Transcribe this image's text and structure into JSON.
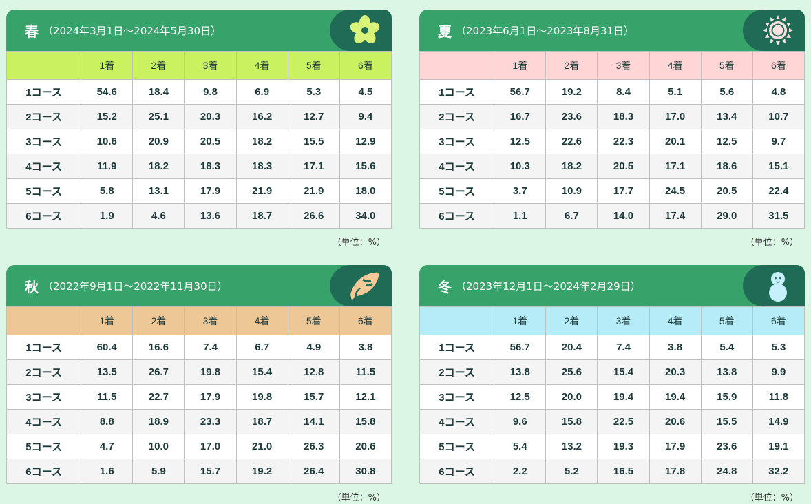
{
  "unit_label": "（単位：%）",
  "columns": [
    "1着",
    "2着",
    "3着",
    "4着",
    "5着",
    "6着"
  ],
  "panels": [
    {
      "season": "春",
      "period": "（2024年3月1日～2024年5月30日）",
      "icon": "sakura-icon",
      "header_color": "#c9f160",
      "rows": [
        {
          "label": "1コース",
          "values": [
            "54.6",
            "18.4",
            "9.8",
            "6.9",
            "5.3",
            "4.5"
          ]
        },
        {
          "label": "2コース",
          "values": [
            "15.2",
            "25.1",
            "20.3",
            "16.2",
            "12.7",
            "9.4"
          ]
        },
        {
          "label": "3コース",
          "values": [
            "10.6",
            "20.9",
            "20.5",
            "18.2",
            "15.5",
            "12.9"
          ]
        },
        {
          "label": "4コース",
          "values": [
            "11.9",
            "18.2",
            "18.3",
            "18.3",
            "17.1",
            "15.6"
          ]
        },
        {
          "label": "5コース",
          "values": [
            "5.8",
            "13.1",
            "17.9",
            "21.9",
            "21.9",
            "18.0"
          ]
        },
        {
          "label": "6コース",
          "values": [
            "1.9",
            "4.6",
            "13.6",
            "18.7",
            "26.6",
            "34.0"
          ]
        }
      ]
    },
    {
      "season": "夏",
      "period": "（2023年6月1日～2023年8月31日）",
      "icon": "sun-icon",
      "header_color": "#ffd5d5",
      "rows": [
        {
          "label": "1コース",
          "values": [
            "56.7",
            "19.2",
            "8.4",
            "5.1",
            "5.6",
            "4.8"
          ]
        },
        {
          "label": "2コース",
          "values": [
            "16.7",
            "23.6",
            "18.3",
            "17.0",
            "13.4",
            "10.7"
          ]
        },
        {
          "label": "3コース",
          "values": [
            "12.5",
            "22.6",
            "22.3",
            "20.1",
            "12.5",
            "9.7"
          ]
        },
        {
          "label": "4コース",
          "values": [
            "10.3",
            "18.2",
            "20.5",
            "17.1",
            "18.6",
            "15.1"
          ]
        },
        {
          "label": "5コース",
          "values": [
            "3.7",
            "10.9",
            "17.7",
            "24.5",
            "20.5",
            "22.4"
          ]
        },
        {
          "label": "6コース",
          "values": [
            "1.1",
            "6.7",
            "14.0",
            "17.4",
            "29.0",
            "31.5"
          ]
        }
      ]
    },
    {
      "season": "秋",
      "period": "（2022年9月1日～2022年11月30日）",
      "icon": "leaf-icon",
      "header_color": "#eec797",
      "rows": [
        {
          "label": "1コース",
          "values": [
            "60.4",
            "16.6",
            "7.4",
            "6.7",
            "4.9",
            "3.8"
          ]
        },
        {
          "label": "2コース",
          "values": [
            "13.5",
            "26.7",
            "19.8",
            "15.4",
            "12.8",
            "11.5"
          ]
        },
        {
          "label": "3コース",
          "values": [
            "11.5",
            "22.7",
            "17.9",
            "19.8",
            "15.7",
            "12.1"
          ]
        },
        {
          "label": "4コース",
          "values": [
            "8.8",
            "18.9",
            "23.3",
            "18.7",
            "14.1",
            "15.8"
          ]
        },
        {
          "label": "5コース",
          "values": [
            "4.7",
            "10.0",
            "17.0",
            "21.0",
            "26.3",
            "20.6"
          ]
        },
        {
          "label": "6コース",
          "values": [
            "1.6",
            "5.9",
            "15.7",
            "19.2",
            "26.4",
            "30.8"
          ]
        }
      ]
    },
    {
      "season": "冬",
      "period": "（2023年12月1日～2024年2月29日）",
      "icon": "snowman-icon",
      "header_color": "#b6ecf8",
      "rows": [
        {
          "label": "1コース",
          "values": [
            "56.7",
            "20.4",
            "7.4",
            "3.8",
            "5.4",
            "5.3"
          ]
        },
        {
          "label": "2コース",
          "values": [
            "13.8",
            "25.6",
            "15.4",
            "20.3",
            "13.8",
            "9.9"
          ]
        },
        {
          "label": "3コース",
          "values": [
            "12.5",
            "20.0",
            "19.4",
            "19.4",
            "15.9",
            "11.8"
          ]
        },
        {
          "label": "4コース",
          "values": [
            "9.6",
            "15.8",
            "22.5",
            "20.6",
            "15.5",
            "14.9"
          ]
        },
        {
          "label": "5コース",
          "values": [
            "5.4",
            "13.2",
            "19.3",
            "17.9",
            "23.6",
            "19.1"
          ]
        },
        {
          "label": "6コース",
          "values": [
            "2.2",
            "5.2",
            "16.5",
            "17.8",
            "24.8",
            "32.2"
          ]
        }
      ]
    }
  ]
}
